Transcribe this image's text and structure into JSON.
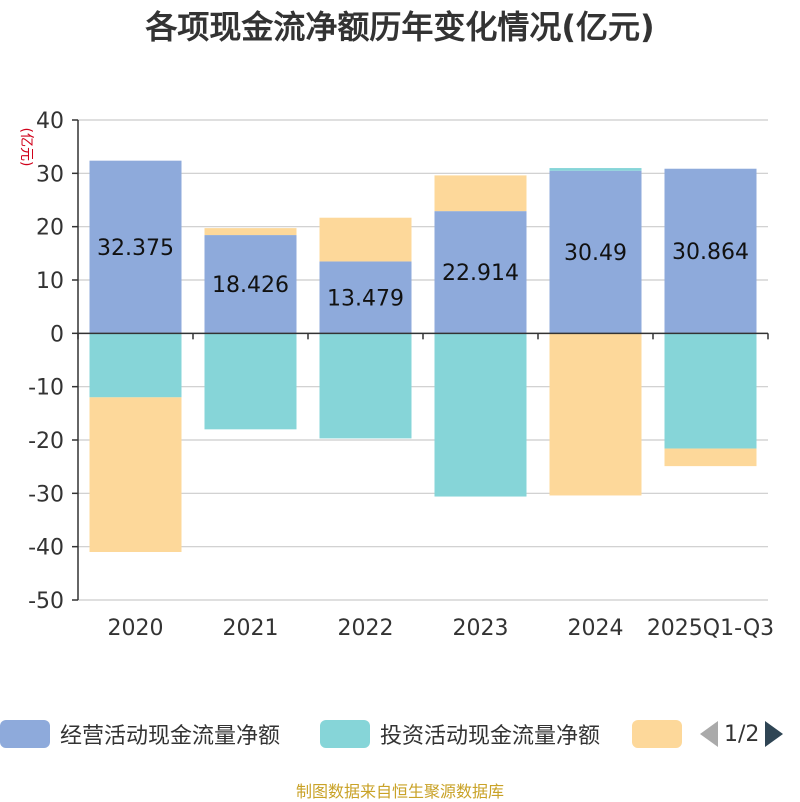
{
  "chart_data": {
    "type": "bar",
    "stacked": true,
    "title": "各项现金流净额历年变化情况(亿元)",
    "ylabel": "(亿元)",
    "ylim": [
      -50,
      40
    ],
    "yticks": [
      40,
      30,
      20,
      10,
      0,
      -10,
      -20,
      -30,
      -40,
      -50
    ],
    "categories": [
      "2020",
      "2021",
      "2022",
      "2023",
      "2024",
      "2025Q1-Q3"
    ],
    "series": [
      {
        "name": "经营活动现金流量净额",
        "color": "#8eaadb",
        "values": [
          32.375,
          18.426,
          13.479,
          22.914,
          30.49,
          30.864
        ]
      },
      {
        "name": "投资活动现金流量净额",
        "color": "#86d5d8",
        "values": [
          -12.0,
          -18.0,
          -19.7,
          -30.6,
          0.5,
          -21.6
        ]
      },
      {
        "name": "",
        "color": "#fdd89a",
        "values": [
          -29.0,
          1.3,
          8.2,
          6.7,
          -30.4,
          -3.3
        ]
      }
    ],
    "data_labels": [
      "32.375",
      "18.426",
      "13.479",
      "22.914",
      "30.49",
      "30.864"
    ]
  },
  "legend": {
    "items": [
      "经营活动现金流量净额",
      "投资活动现金流量净额",
      ""
    ],
    "page": "1/2"
  },
  "source": "制图数据来自恒生聚源数据库"
}
